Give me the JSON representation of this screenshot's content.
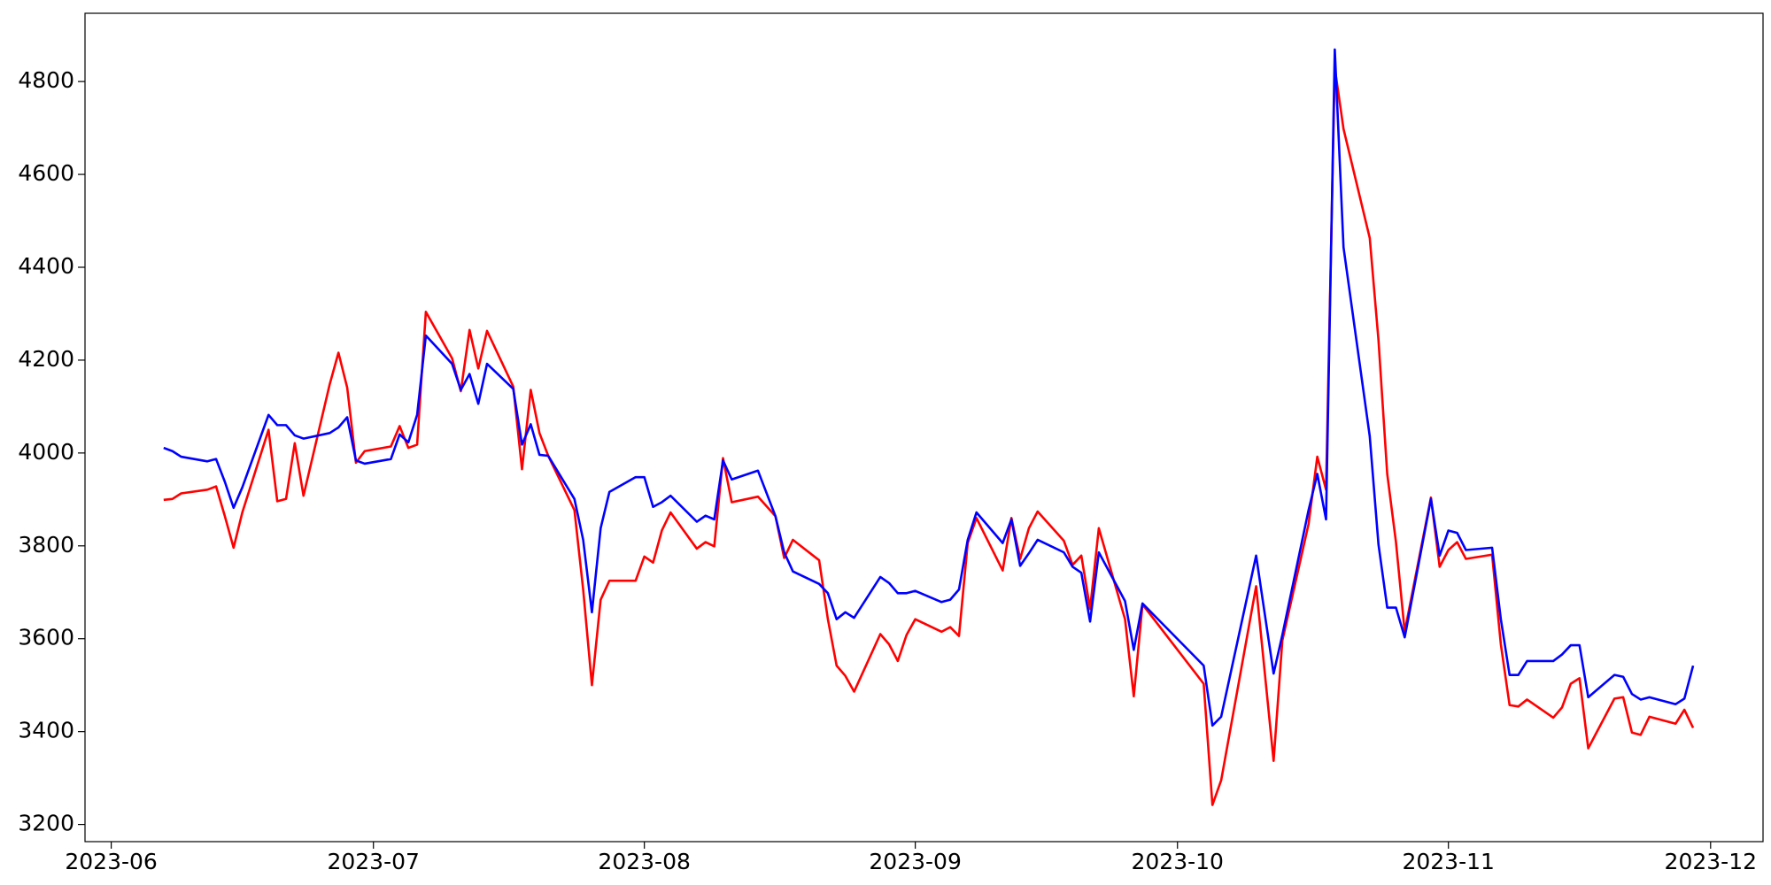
{
  "chart_data": {
    "type": "line",
    "x": [
      "2023-06-07",
      "2023-06-08",
      "2023-06-09",
      "2023-06-12",
      "2023-06-13",
      "2023-06-14",
      "2023-06-15",
      "2023-06-16",
      "2023-06-19",
      "2023-06-20",
      "2023-06-21",
      "2023-06-22",
      "2023-06-23",
      "2023-06-26",
      "2023-06-27",
      "2023-06-28",
      "2023-06-29",
      "2023-06-30",
      "2023-07-03",
      "2023-07-04",
      "2023-07-05",
      "2023-07-06",
      "2023-07-07",
      "2023-07-10",
      "2023-07-11",
      "2023-07-12",
      "2023-07-13",
      "2023-07-14",
      "2023-07-17",
      "2023-07-18",
      "2023-07-19",
      "2023-07-20",
      "2023-07-21",
      "2023-07-24",
      "2023-07-25",
      "2023-07-26",
      "2023-07-27",
      "2023-07-28",
      "2023-07-31",
      "2023-08-01",
      "2023-08-02",
      "2023-08-03",
      "2023-08-04",
      "2023-08-07",
      "2023-08-08",
      "2023-08-09",
      "2023-08-10",
      "2023-08-11",
      "2023-08-14",
      "2023-08-16",
      "2023-08-17",
      "2023-08-18",
      "2023-08-21",
      "2023-08-22",
      "2023-08-23",
      "2023-08-24",
      "2023-08-25",
      "2023-08-28",
      "2023-08-29",
      "2023-08-30",
      "2023-08-31",
      "2023-09-01",
      "2023-09-04",
      "2023-09-05",
      "2023-09-06",
      "2023-09-07",
      "2023-09-08",
      "2023-09-11",
      "2023-09-12",
      "2023-09-13",
      "2023-09-14",
      "2023-09-15",
      "2023-09-18",
      "2023-09-19",
      "2023-09-20",
      "2023-09-21",
      "2023-09-22",
      "2023-09-25",
      "2023-09-26",
      "2023-09-27",
      "2023-10-04",
      "2023-10-05",
      "2023-10-06",
      "2023-10-10",
      "2023-10-12",
      "2023-10-13",
      "2023-10-16",
      "2023-10-17",
      "2023-10-18",
      "2023-10-19",
      "2023-10-20",
      "2023-10-23",
      "2023-10-24",
      "2023-10-25",
      "2023-10-26",
      "2023-10-27",
      "2023-10-30",
      "2023-10-31",
      "2023-11-01",
      "2023-11-02",
      "2023-11-03",
      "2023-11-06",
      "2023-11-07",
      "2023-11-08",
      "2023-11-09",
      "2023-11-10",
      "2023-11-13",
      "2023-11-14",
      "2023-11-15",
      "2023-11-16",
      "2023-11-17",
      "2023-11-20",
      "2023-11-21",
      "2023-11-22",
      "2023-11-23",
      "2023-11-24",
      "2023-11-27",
      "2023-11-28",
      "2023-11-29"
    ],
    "series": [
      {
        "color": "#ff0000",
        "values": [
          3899,
          3901,
          3913,
          3921,
          3928,
          3864,
          3796,
          3872,
          4050,
          3896,
          3901,
          4021,
          3908,
          4148,
          4216,
          4141,
          3979,
          4004,
          4014,
          4058,
          4011,
          4018,
          4304,
          4204,
          4133,
          4265,
          4182,
          4263,
          4143,
          3965,
          4136,
          4043,
          3994,
          3877,
          3706,
          3500,
          3684,
          3725,
          3725,
          3777,
          3764,
          3833,
          3872,
          3794,
          3808,
          3799,
          3989,
          3894,
          3906,
          3864,
          3774,
          3813,
          3769,
          3642,
          3542,
          3520,
          3486,
          3610,
          3588,
          3552,
          3608,
          3642,
          3615,
          3625,
          3606,
          3806,
          3860,
          3747,
          3860,
          3772,
          3838,
          3874,
          3811,
          3759,
          3779,
          3664,
          3838,
          3642,
          3476,
          3674,
          3503,
          3242,
          3295,
          3713,
          3337,
          3596,
          3847,
          3992,
          3921,
          4829,
          4698,
          4463,
          4243,
          3955,
          3808,
          3615,
          3904,
          3755,
          3791,
          3808,
          3772,
          3781,
          3588,
          3457,
          3454,
          3469,
          3430,
          3452,
          3503,
          3515,
          3364,
          3471,
          3474,
          3398,
          3393,
          3432,
          3417,
          3447,
          3408
        ]
      },
      {
        "color": "#0000ff",
        "values": [
          4011,
          4004,
          3992,
          3982,
          3987,
          3938,
          3882,
          3926,
          4082,
          4060,
          4060,
          4038,
          4031,
          4043,
          4055,
          4077,
          3984,
          3977,
          3987,
          4040,
          4023,
          4082,
          4253,
          4192,
          4136,
          4170,
          4106,
          4192,
          4138,
          4018,
          4062,
          3996,
          3994,
          3901,
          3813,
          3657,
          3838,
          3916,
          3948,
          3948,
          3884,
          3894,
          3908,
          3852,
          3865,
          3857,
          3984,
          3943,
          3962,
          3864,
          3786,
          3745,
          3718,
          3698,
          3642,
          3657,
          3645,
          3733,
          3720,
          3698,
          3698,
          3703,
          3679,
          3684,
          3706,
          3813,
          3872,
          3806,
          3857,
          3757,
          3784,
          3813,
          3786,
          3755,
          3742,
          3637,
          3786,
          3681,
          3576,
          3676,
          3542,
          3413,
          3432,
          3779,
          3525,
          3608,
          3877,
          3955,
          3857,
          4869,
          4443,
          4036,
          3803,
          3667,
          3667,
          3603,
          3901,
          3779,
          3833,
          3828,
          3791,
          3796,
          3642,
          3522,
          3522,
          3552,
          3552,
          3566,
          3586,
          3586,
          3474,
          3522,
          3518,
          3481,
          3469,
          3474,
          3459,
          3471,
          3542
        ]
      }
    ],
    "xlim": [
      "2023-05-29",
      "2023-12-07"
    ],
    "xticks": [
      {
        "value": "2023-06-01",
        "label": "2023-06"
      },
      {
        "value": "2023-07-01",
        "label": "2023-07"
      },
      {
        "value": "2023-08-01",
        "label": "2023-08"
      },
      {
        "value": "2023-09-01",
        "label": "2023-09"
      },
      {
        "value": "2023-10-01",
        "label": "2023-10"
      },
      {
        "value": "2023-11-01",
        "label": "2023-11"
      },
      {
        "value": "2023-12-01",
        "label": "2023-12"
      }
    ],
    "ylim": [
      3163,
      4947
    ],
    "yticks": [
      3200,
      3400,
      3600,
      3800,
      4000,
      4200,
      4400,
      4600,
      4800
    ]
  }
}
